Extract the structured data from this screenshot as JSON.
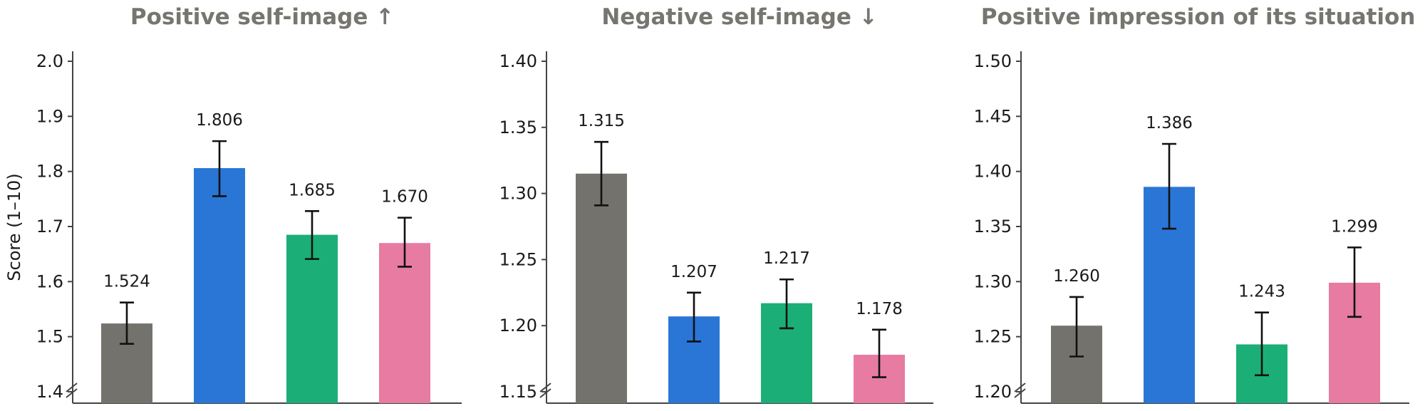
{
  "chart_data": [
    {
      "type": "bar",
      "title": "Positive self-image ↑",
      "ylabel": "Score (1–10)",
      "ylim": [
        1.4,
        2.0
      ],
      "yticks": [
        "1.4",
        "1.5",
        "1.6",
        "1.7",
        "1.8",
        "1.9",
        "2.0"
      ],
      "axis_break": true,
      "values": [
        1.524,
        1.806,
        1.685,
        1.67
      ],
      "value_labels": [
        "1.524",
        "1.806",
        "1.685",
        "1.670"
      ],
      "error": [
        [
          1.487,
          1.562
        ],
        [
          1.755,
          1.855
        ],
        [
          1.641,
          1.728
        ],
        [
          1.627,
          1.716
        ]
      ],
      "colors": [
        "#73726c",
        "#2a76d6",
        "#1baf77",
        "#e77ba2"
      ]
    },
    {
      "type": "bar",
      "title": "Negative self-image ↓",
      "ylabel": "",
      "ylim": [
        1.15,
        1.4
      ],
      "yticks": [
        "1.15",
        "1.20",
        "1.25",
        "1.30",
        "1.35",
        "1.40"
      ],
      "axis_break": true,
      "values": [
        1.315,
        1.207,
        1.217,
        1.178
      ],
      "value_labels": [
        "1.315",
        "1.207",
        "1.217",
        "1.178"
      ],
      "error": [
        [
          1.291,
          1.339
        ],
        [
          1.188,
          1.225
        ],
        [
          1.198,
          1.235
        ],
        [
          1.161,
          1.197
        ]
      ],
      "colors": [
        "#73726c",
        "#2a76d6",
        "#1baf77",
        "#e77ba2"
      ]
    },
    {
      "type": "bar",
      "title": "Positive impression of its situation ↑",
      "ylabel": "",
      "ylim": [
        1.2,
        1.5
      ],
      "yticks": [
        "1.20",
        "1.25",
        "1.30",
        "1.35",
        "1.40",
        "1.45",
        "1.50"
      ],
      "axis_break": true,
      "values": [
        1.26,
        1.386,
        1.243,
        1.299
      ],
      "value_labels": [
        "1.260",
        "1.386",
        "1.243",
        "1.299"
      ],
      "error": [
        [
          1.232,
          1.286
        ],
        [
          1.348,
          1.425
        ],
        [
          1.215,
          1.272
        ],
        [
          1.268,
          1.331
        ]
      ],
      "colors": [
        "#73726c",
        "#2a76d6",
        "#1baf77",
        "#e77ba2"
      ]
    }
  ]
}
